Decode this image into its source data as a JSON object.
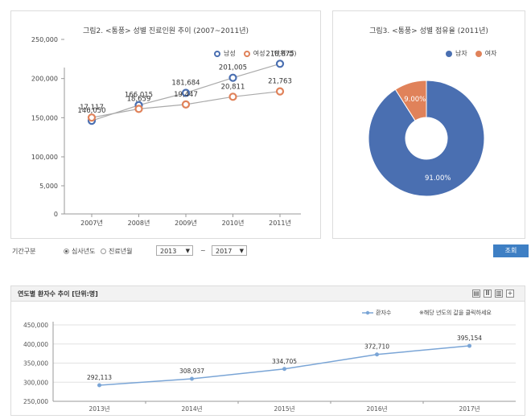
{
  "left_chart": {
    "title": "그림2. <통풍> 성별 진료인원 추이 (2007~2011년)",
    "legend": [
      {
        "label": "남성",
        "color": "#4a6fb1"
      },
      {
        "label": "여성",
        "color": "#e0825a"
      }
    ],
    "unit": "(단위:명)"
  },
  "right_chart": {
    "title": "그림3. <통풍> 성별 점유율 (2011년)",
    "legend": [
      {
        "label": "남자",
        "color": "#4a6fb1"
      },
      {
        "label": "여자",
        "color": "#e0825a"
      }
    ]
  },
  "filter": {
    "label": "기간구분",
    "option1": "심사년도",
    "option2": "진료년월",
    "from_year": "2013",
    "tilde": "~",
    "to_year": "2017",
    "search_button": "조회"
  },
  "bottom_chart": {
    "header_title": "연도별 환자수 추이 [단위:명]",
    "legend_label": "환자수",
    "note": "※해당 년도의 값을 클릭하세요"
  },
  "chart_data": [
    {
      "type": "line",
      "title": "그림2. <통풍> 성별 진료인원 추이 (2007~2011년)",
      "categories": [
        "2007년",
        "2008년",
        "2009년",
        "2010년",
        "2011년"
      ],
      "series": [
        {
          "name": "남성",
          "values": [
            146050,
            166015,
            181684,
            201005,
            218875
          ],
          "labels": [
            "146,050",
            "166,015",
            "181,684",
            "201,005",
            "218,875"
          ],
          "color": "#4a6fb1"
        },
        {
          "name": "여성",
          "values": [
            17117,
            18659,
            19447,
            20811,
            21763
          ],
          "labels": [
            "17,117",
            "18,659",
            "19,447",
            "20,811",
            "21,763"
          ],
          "color": "#e0825a"
        }
      ],
      "yticks": [
        "250,000",
        "200,000",
        "150,000",
        "100,000",
        "5,000",
        "0"
      ],
      "axis_break": "broken y axis: 0-25,000 region compressed below 100,000",
      "grid": false
    },
    {
      "type": "pie",
      "title": "그림3. <통풍> 성별 점유율 (2011년)",
      "slices": [
        {
          "name": "남자",
          "value": 91.0,
          "label": "91.00%",
          "color": "#4a6fb1"
        },
        {
          "name": "여자",
          "value": 9.0,
          "label": "9.00%",
          "color": "#e0825a"
        }
      ],
      "donut": true,
      "legend": "top-right"
    },
    {
      "type": "line",
      "categories": [
        "2013년",
        "2014년",
        "2015년",
        "2016년",
        "2017년"
      ],
      "series": [
        {
          "name": "환자수",
          "values": [
            292113,
            308937,
            334705,
            372710,
            395154
          ],
          "labels": [
            "292,113",
            "308,937",
            "334,705",
            "372,710",
            "395,154"
          ],
          "color": "#7aa5d6"
        }
      ],
      "ylim": [
        250000,
        450000
      ],
      "yticks": [
        "450,000",
        "400,000",
        "350,000",
        "300,000",
        "250,000"
      ],
      "grid": true
    }
  ]
}
